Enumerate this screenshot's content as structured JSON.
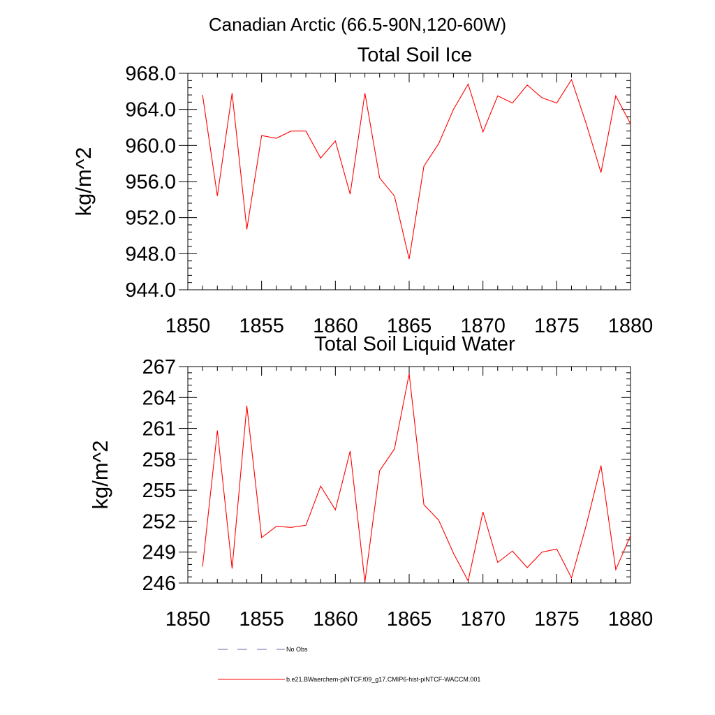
{
  "figure_title": "Canadian Arctic (66.5-90N,120-60W)",
  "legend": {
    "obs_label": "No Obs",
    "obs_color": "#6a6aa0",
    "model_label": "b.e21.BWaerchem-piNTCF.f09_g17.CMIP6-hist-piNTCF-WACCM.001",
    "model_color": "#ff0000"
  },
  "chart_data": [
    {
      "type": "line",
      "title": "Total Soil Ice",
      "xlabel": "",
      "ylabel": "kg/m^2",
      "xlim": [
        1850,
        1880
      ],
      "ylim": [
        944,
        968
      ],
      "x_ticks": [
        1850,
        1855,
        1860,
        1865,
        1870,
        1875,
        1880
      ],
      "x_tick_labels": [
        "1850",
        "1855",
        "1860",
        "1865",
        "1870",
        "1875",
        "1880"
      ],
      "y_ticks": [
        944,
        948,
        952,
        956,
        960,
        964,
        968
      ],
      "y_tick_labels": [
        "944.0",
        "948.0",
        "952.0",
        "956.0",
        "960.0",
        "964.0",
        "968.0"
      ],
      "x_minor_step": 1,
      "y_minor_step": 0.8,
      "grid": false,
      "series": [
        {
          "color": "#ff0000",
          "x": [
            1851,
            1852,
            1853,
            1854,
            1855,
            1856,
            1857,
            1858,
            1859,
            1860,
            1861,
            1862,
            1863,
            1864,
            1865,
            1866,
            1867,
            1868,
            1869,
            1870,
            1871,
            1872,
            1873,
            1874,
            1875,
            1876,
            1877,
            1878,
            1879,
            1880
          ],
          "y": [
            965.6,
            954.4,
            965.8,
            950.7,
            961.1,
            960.8,
            961.6,
            961.6,
            958.6,
            960.5,
            954.6,
            965.8,
            956.4,
            954.4,
            947.4,
            957.7,
            960.2,
            964.0,
            966.8,
            961.5,
            965.5,
            964.7,
            966.7,
            965.3,
            964.7,
            967.3,
            962.4,
            957.0,
            965.5,
            962.4
          ]
        }
      ]
    },
    {
      "type": "line",
      "title": "Total Soil Liquid Water",
      "xlabel": "",
      "ylabel": "kg/m^2",
      "xlim": [
        1850,
        1880
      ],
      "ylim": [
        246,
        267
      ],
      "x_ticks": [
        1850,
        1855,
        1860,
        1865,
        1870,
        1875,
        1880
      ],
      "x_tick_labels": [
        "1850",
        "1855",
        "1860",
        "1865",
        "1870",
        "1875",
        "1880"
      ],
      "y_ticks": [
        246,
        249,
        252,
        255,
        258,
        261,
        264,
        267
      ],
      "y_tick_labels": [
        "246",
        "249",
        "252",
        "255",
        "258",
        "261",
        "264",
        "267"
      ],
      "x_minor_step": 1,
      "y_minor_step": 0.6,
      "grid": false,
      "series": [
        {
          "color": "#ff0000",
          "x": [
            1851,
            1852,
            1853,
            1854,
            1855,
            1856,
            1857,
            1858,
            1859,
            1860,
            1861,
            1862,
            1863,
            1864,
            1865,
            1866,
            1867,
            1868,
            1869,
            1870,
            1871,
            1872,
            1873,
            1874,
            1875,
            1876,
            1877,
            1878,
            1879,
            1880
          ],
          "y": [
            247.6,
            260.8,
            247.4,
            263.2,
            250.4,
            251.5,
            251.4,
            251.6,
            255.4,
            253.1,
            258.8,
            246.1,
            256.9,
            259.0,
            266.3,
            253.6,
            252.1,
            248.9,
            246.2,
            252.9,
            248.0,
            249.1,
            247.5,
            249.0,
            249.3,
            246.5,
            251.6,
            257.4,
            247.3,
            250.6
          ]
        }
      ]
    }
  ]
}
